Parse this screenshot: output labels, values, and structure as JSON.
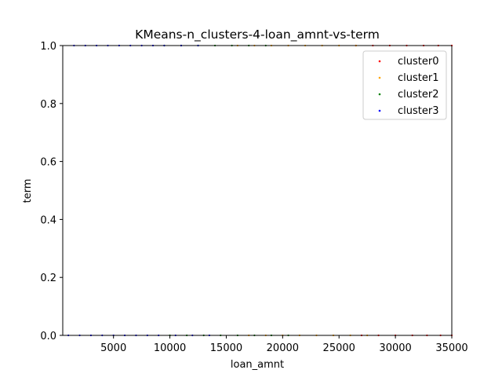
{
  "chart_data": {
    "type": "scatter",
    "title": "KMeans-n_clusters-4-loan_amnt-vs-term",
    "xlabel": "loan_amnt",
    "ylabel": "term",
    "xlim": [
      500,
      35000
    ],
    "ylim": [
      0.0,
      1.0
    ],
    "x_ticks": [
      5000,
      10000,
      15000,
      20000,
      25000,
      30000,
      35000
    ],
    "y_ticks": [
      "0.0",
      "0.2",
      "0.4",
      "0.6",
      "0.8",
      "1.0"
    ],
    "grid": false,
    "legend_position": "top-right",
    "series": [
      {
        "name": "cluster0",
        "color": "#ff0000",
        "points": [
          [
            27000,
            0
          ],
          [
            28500,
            0
          ],
          [
            30000,
            0
          ],
          [
            31500,
            0
          ],
          [
            32800,
            0
          ],
          [
            34000,
            0
          ],
          [
            35000,
            0
          ],
          [
            26500,
            1
          ],
          [
            28000,
            1
          ],
          [
            29500,
            1
          ],
          [
            31000,
            1
          ],
          [
            32500,
            1
          ],
          [
            33800,
            1
          ],
          [
            35000,
            1
          ]
        ]
      },
      {
        "name": "cluster1",
        "color": "#ffa500",
        "points": [
          [
            17000,
            0
          ],
          [
            18500,
            0
          ],
          [
            20000,
            0
          ],
          [
            21500,
            0
          ],
          [
            23000,
            0
          ],
          [
            24500,
            0
          ],
          [
            26000,
            0
          ],
          [
            27500,
            0
          ],
          [
            16000,
            1
          ],
          [
            17500,
            1
          ],
          [
            19000,
            1
          ],
          [
            20500,
            1
          ],
          [
            22000,
            1
          ],
          [
            23500,
            1
          ],
          [
            25000,
            1
          ],
          [
            26500,
            1
          ]
        ]
      },
      {
        "name": "cluster2",
        "color": "#008000",
        "points": [
          [
            10000,
            0
          ],
          [
            11500,
            0
          ],
          [
            13000,
            0
          ],
          [
            14500,
            0
          ],
          [
            16000,
            0
          ],
          [
            17500,
            0
          ],
          [
            19000,
            0
          ],
          [
            20500,
            0
          ],
          [
            9500,
            1
          ],
          [
            11000,
            1
          ],
          [
            12500,
            1
          ],
          [
            14000,
            1
          ],
          [
            15500,
            1
          ],
          [
            17000,
            1
          ],
          [
            18500,
            1
          ]
        ]
      },
      {
        "name": "cluster3",
        "color": "#0000ff",
        "points": [
          [
            1000,
            0
          ],
          [
            2000,
            0
          ],
          [
            3000,
            0
          ],
          [
            4000,
            0
          ],
          [
            5000,
            0
          ],
          [
            6000,
            0
          ],
          [
            7000,
            0
          ],
          [
            8000,
            0
          ],
          [
            9000,
            0
          ],
          [
            10500,
            0
          ],
          [
            12000,
            0
          ],
          [
            13500,
            0
          ],
          [
            1500,
            1
          ],
          [
            2500,
            1
          ],
          [
            3500,
            1
          ],
          [
            4500,
            1
          ],
          [
            5500,
            1
          ],
          [
            6500,
            1
          ],
          [
            7500,
            1
          ],
          [
            8500,
            1
          ],
          [
            9500,
            1
          ],
          [
            11000,
            1
          ],
          [
            12500,
            1
          ]
        ]
      }
    ]
  }
}
